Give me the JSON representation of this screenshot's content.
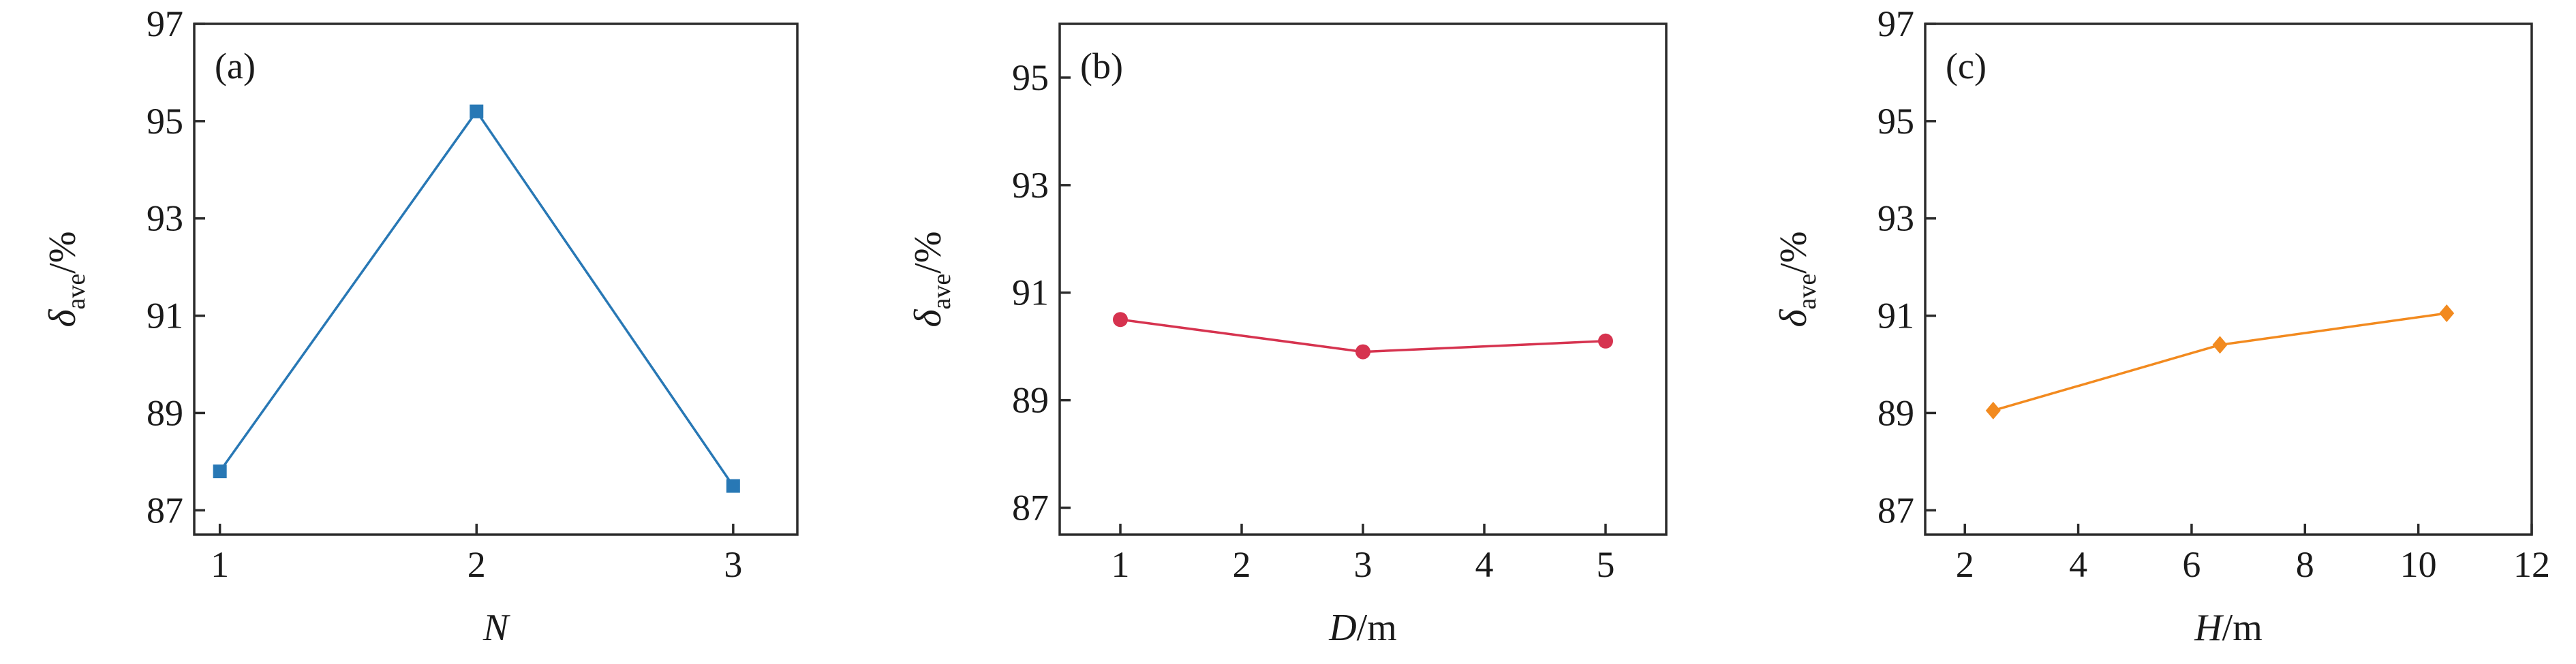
{
  "chart_data": [
    {
      "type": "line",
      "panel_label": "(a)",
      "xlabel": {
        "var": "N",
        "unit": ""
      },
      "ylabel": {
        "var": "δ",
        "sub": "ave",
        "unit": "/%"
      },
      "x_ticks": [
        "1",
        "2",
        "3"
      ],
      "y_ticks": [
        "87",
        "89",
        "91",
        "93",
        "95",
        "97"
      ],
      "xlim": [
        0.9,
        3.25
      ],
      "ylim": [
        86.5,
        97
      ],
      "grid": false,
      "marker": "square",
      "color": "#2878b5",
      "series": [
        {
          "x": [
            1,
            2,
            3
          ],
          "y": [
            87.8,
            95.2,
            87.5
          ]
        }
      ]
    },
    {
      "type": "line",
      "panel_label": "(b)",
      "xlabel": {
        "var": "D",
        "unit": "/m"
      },
      "ylabel": {
        "var": "δ",
        "sub": "ave",
        "unit": "/%"
      },
      "x_ticks": [
        "1",
        "2",
        "3",
        "4",
        "5"
      ],
      "y_ticks": [
        "87",
        "89",
        "91",
        "93",
        "95"
      ],
      "xlim": [
        0.5,
        5.5
      ],
      "ylim": [
        86.5,
        96
      ],
      "grid": false,
      "marker": "circle",
      "color": "#d6334f",
      "series": [
        {
          "x": [
            1,
            3,
            5
          ],
          "y": [
            90.5,
            89.9,
            90.1
          ]
        }
      ]
    },
    {
      "type": "line",
      "panel_label": "(c)",
      "xlabel": {
        "var": "H",
        "unit": "/m"
      },
      "ylabel": {
        "var": "δ",
        "sub": "ave",
        "unit": "/%"
      },
      "x_ticks": [
        "2",
        "4",
        "6",
        "8",
        "10",
        "12"
      ],
      "y_ticks": [
        "87",
        "89",
        "91",
        "93",
        "95",
        "97"
      ],
      "xlim": [
        1.3,
        12
      ],
      "ylim": [
        86.5,
        97
      ],
      "grid": false,
      "marker": "diamond",
      "color": "#f28a1f",
      "series": [
        {
          "x": [
            2.5,
            6.5,
            10.5
          ],
          "y": [
            89.05,
            90.4,
            91.05
          ]
        }
      ]
    }
  ]
}
